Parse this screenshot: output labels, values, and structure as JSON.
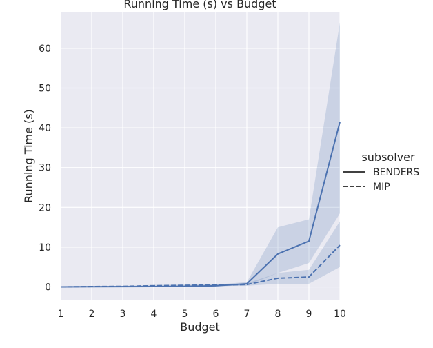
{
  "chart_data": {
    "type": "line",
    "title": "Running Time (s) vs Budget",
    "xlabel": "Budget",
    "ylabel": "Running Time (s)",
    "x": [
      1,
      2,
      3,
      4,
      5,
      6,
      7,
      8,
      9,
      10
    ],
    "xlim": [
      1,
      10
    ],
    "ylim": [
      -3.2,
      69
    ],
    "xticks": [
      1,
      2,
      3,
      4,
      5,
      6,
      7,
      8,
      9,
      10
    ],
    "yticks": [
      0,
      10,
      20,
      30,
      40,
      50,
      60
    ],
    "grid": true,
    "legend": {
      "title": "subsolver",
      "placement": "right"
    },
    "series": [
      {
        "name": "BENDERS",
        "style": "solid",
        "color": "#4c72b0",
        "values": [
          0,
          0.05,
          0.08,
          0.1,
          0.15,
          0.3,
          0.8,
          8.3,
          11.5,
          41.5
        ],
        "ci_low": [
          0,
          0.02,
          0.03,
          0.05,
          0.08,
          0.15,
          0.4,
          3.5,
          6.0,
          18.5
        ],
        "ci_high": [
          0.05,
          0.15,
          0.25,
          0.3,
          0.4,
          0.6,
          1.2,
          15.0,
          17.0,
          66.5
        ]
      },
      {
        "name": "MIP",
        "style": "dashed",
        "color": "#4c72b0",
        "values": [
          0,
          0.1,
          0.15,
          0.3,
          0.4,
          0.5,
          0.6,
          2.2,
          2.5,
          10.5
        ],
        "ci_low": [
          0,
          0.05,
          0.08,
          0.15,
          0.2,
          0.25,
          0.3,
          0.8,
          0.8,
          5.0
        ],
        "ci_high": [
          0.05,
          0.2,
          0.3,
          0.5,
          0.6,
          0.7,
          0.9,
          3.5,
          4.3,
          16.5
        ]
      }
    ]
  }
}
